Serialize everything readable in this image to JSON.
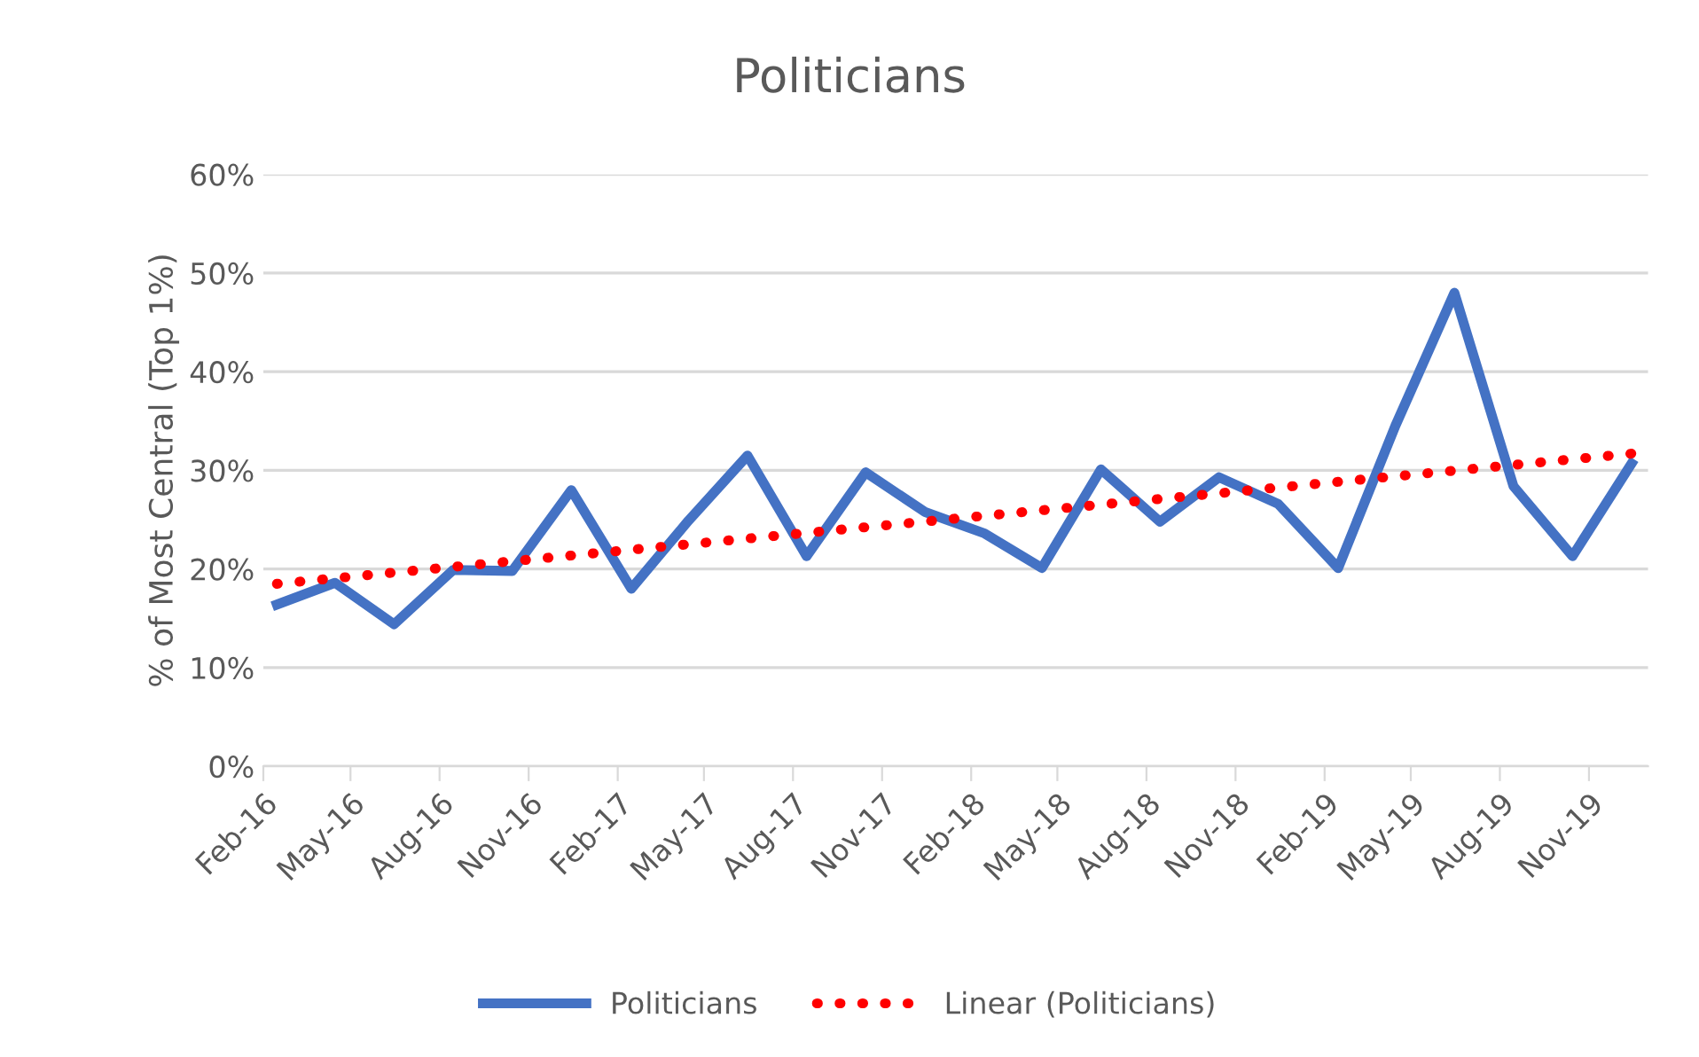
{
  "chart_data": {
    "type": "line",
    "title": "Politicians",
    "ylabel": "% of Most Central (Top 1%)",
    "xlim": [
      "2016-02-01",
      "2020-01-01"
    ],
    "xticks": [
      {
        "value": "2016-02-01",
        "label": "Feb-16"
      },
      {
        "value": "2016-05-01",
        "label": "May-16"
      },
      {
        "value": "2016-08-01",
        "label": "Aug-16"
      },
      {
        "value": "2016-11-01",
        "label": "Nov-16"
      },
      {
        "value": "2017-02-01",
        "label": "Feb-17"
      },
      {
        "value": "2017-05-01",
        "label": "May-17"
      },
      {
        "value": "2017-08-01",
        "label": "Aug-17"
      },
      {
        "value": "2017-11-01",
        "label": "Nov-17"
      },
      {
        "value": "2018-02-01",
        "label": "Feb-18"
      },
      {
        "value": "2018-05-01",
        "label": "May-18"
      },
      {
        "value": "2018-08-01",
        "label": "Aug-18"
      },
      {
        "value": "2018-11-01",
        "label": "Nov-18"
      },
      {
        "value": "2019-02-01",
        "label": "Feb-19"
      },
      {
        "value": "2019-05-01",
        "label": "May-19"
      },
      {
        "value": "2019-08-01",
        "label": "Aug-19"
      },
      {
        "value": "2019-11-01",
        "label": "Nov-19"
      }
    ],
    "ylim": [
      0,
      60
    ],
    "yticks": [
      {
        "value": 0,
        "label": "0%"
      },
      {
        "value": 10,
        "label": "10%"
      },
      {
        "value": 20,
        "label": "20%"
      },
      {
        "value": 30,
        "label": "30%"
      },
      {
        "value": 40,
        "label": "40%"
      },
      {
        "value": 50,
        "label": "50%"
      },
      {
        "value": 60,
        "label": "60%"
      }
    ],
    "grid": "y",
    "legend": "bottom",
    "marker": "none",
    "x": [
      "2016-02-15",
      "2016-04-15",
      "2016-06-15",
      "2016-08-15",
      "2016-10-15",
      "2016-12-15",
      "2017-02-15",
      "2017-04-15",
      "2017-06-15",
      "2017-08-15",
      "2017-10-15",
      "2017-12-15",
      "2018-02-15",
      "2018-04-15",
      "2018-06-15",
      "2018-08-15",
      "2018-10-15",
      "2018-12-15",
      "2019-02-15",
      "2019-04-15",
      "2019-06-15",
      "2019-08-15",
      "2019-10-15",
      "2019-12-15"
    ],
    "series": [
      {
        "name": "Politicians",
        "color": "#4472c4",
        "line_style": "solid",
        "values": [
          16.4,
          18.6,
          14.4,
          19.9,
          19.8,
          28.0,
          18.0,
          24.9,
          31.5,
          21.3,
          29.8,
          25.8,
          23.6,
          20.1,
          30.1,
          24.8,
          29.3,
          26.6,
          20.1,
          34.5,
          48.0,
          28.4,
          21.3,
          30.7
        ]
      },
      {
        "name": "Linear (Politicians)",
        "type": "line",
        "color": "#ff0000",
        "line_style": "dotted",
        "x": [
          "2016-02-15",
          "2019-12-15"
        ],
        "values": [
          18.5,
          31.7
        ]
      }
    ]
  }
}
